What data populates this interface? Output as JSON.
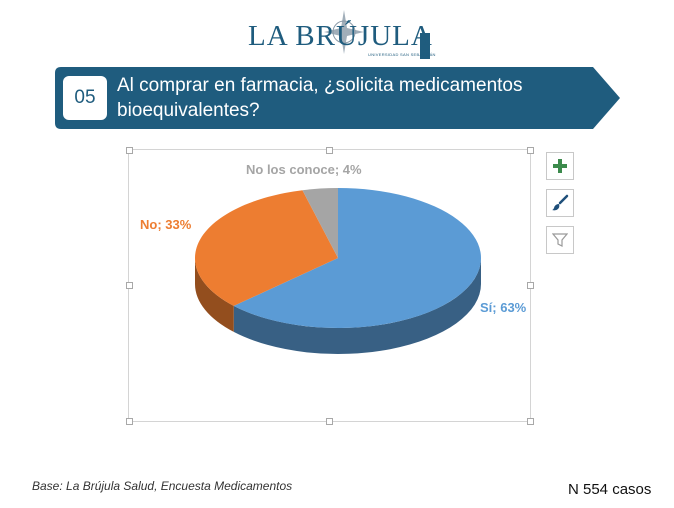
{
  "logo": {
    "text": "LA BRÚJULA",
    "subtitle": "UNIVERSIDAD SAN SEBASTIÁN"
  },
  "question": {
    "number": "05",
    "text": "Al comprar en farmacia, ¿solicita medicamentos bioequivalentes?"
  },
  "colors": {
    "banner": "#1f5c7e",
    "si": "#5b9bd5",
    "no": "#ed7d31",
    "no_conoce": "#a5a5a5"
  },
  "toolbar": {
    "add_icon": "plus-icon",
    "style_icon": "paintbrush-icon",
    "filter_icon": "funnel-icon"
  },
  "chart_data": {
    "type": "pie",
    "labels": [
      "Sí",
      "No",
      "No los conoce"
    ],
    "values": [
      63,
      33,
      4
    ],
    "data_labels": [
      "Sí; 63%",
      "No; 33%",
      "No los conoce; 4%"
    ],
    "unit": "%",
    "style": "3d"
  },
  "footer": {
    "source": "Base: La Brújula Salud, Encuesta Medicamentos",
    "n": "N 554 casos"
  }
}
